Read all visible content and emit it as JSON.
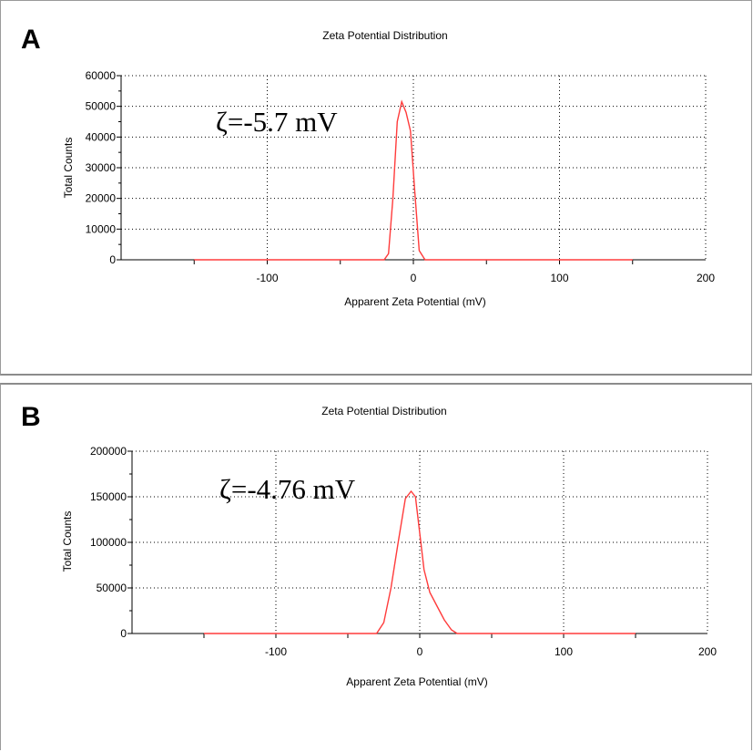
{
  "colors": {
    "series": "#ff3b3b",
    "grid": "#000000",
    "axis": "#000000"
  },
  "chart_data": [
    {
      "type": "line",
      "panel_label": "A",
      "title": "Zeta Potential Distribution",
      "xlabel": "Apparent Zeta Potential (mV)",
      "ylabel": "Total Counts",
      "xlim": [
        -200,
        200
      ],
      "ylim": [
        0,
        60000
      ],
      "x_ticks": [
        -100,
        0,
        100,
        200
      ],
      "y_ticks": [
        0,
        10000,
        20000,
        30000,
        40000,
        50000,
        60000
      ],
      "grid": true,
      "annotation": "ζ=-5.7 mV",
      "series": [
        {
          "x": [
            -150,
            -20,
            -17,
            -14,
            -11,
            -8,
            -5,
            -2,
            1,
            4,
            8,
            12,
            150
          ],
          "y": [
            0,
            0,
            2000,
            20000,
            45000,
            51500,
            48000,
            42000,
            22000,
            3000,
            0,
            0,
            0
          ]
        }
      ]
    },
    {
      "type": "line",
      "panel_label": "B",
      "title": "Zeta Potential Distribution",
      "xlabel": "Apparent Zeta Potential (mV)",
      "ylabel": "Total Counts",
      "xlim": [
        -200,
        200
      ],
      "ylim": [
        0,
        200000
      ],
      "x_ticks": [
        -100,
        0,
        100,
        200
      ],
      "y_ticks": [
        0,
        50000,
        100000,
        150000,
        200000
      ],
      "grid": true,
      "annotation": "ζ=-4.76 mV",
      "series": [
        {
          "x": [
            -150,
            -30,
            -25,
            -20,
            -15,
            -10,
            -6,
            -3,
            0,
            3,
            7,
            12,
            17,
            22,
            26,
            150
          ],
          "y": [
            0,
            0,
            12000,
            50000,
            100000,
            148000,
            156000,
            150000,
            110000,
            70000,
            45000,
            30000,
            15000,
            4000,
            0,
            0
          ]
        }
      ]
    }
  ]
}
